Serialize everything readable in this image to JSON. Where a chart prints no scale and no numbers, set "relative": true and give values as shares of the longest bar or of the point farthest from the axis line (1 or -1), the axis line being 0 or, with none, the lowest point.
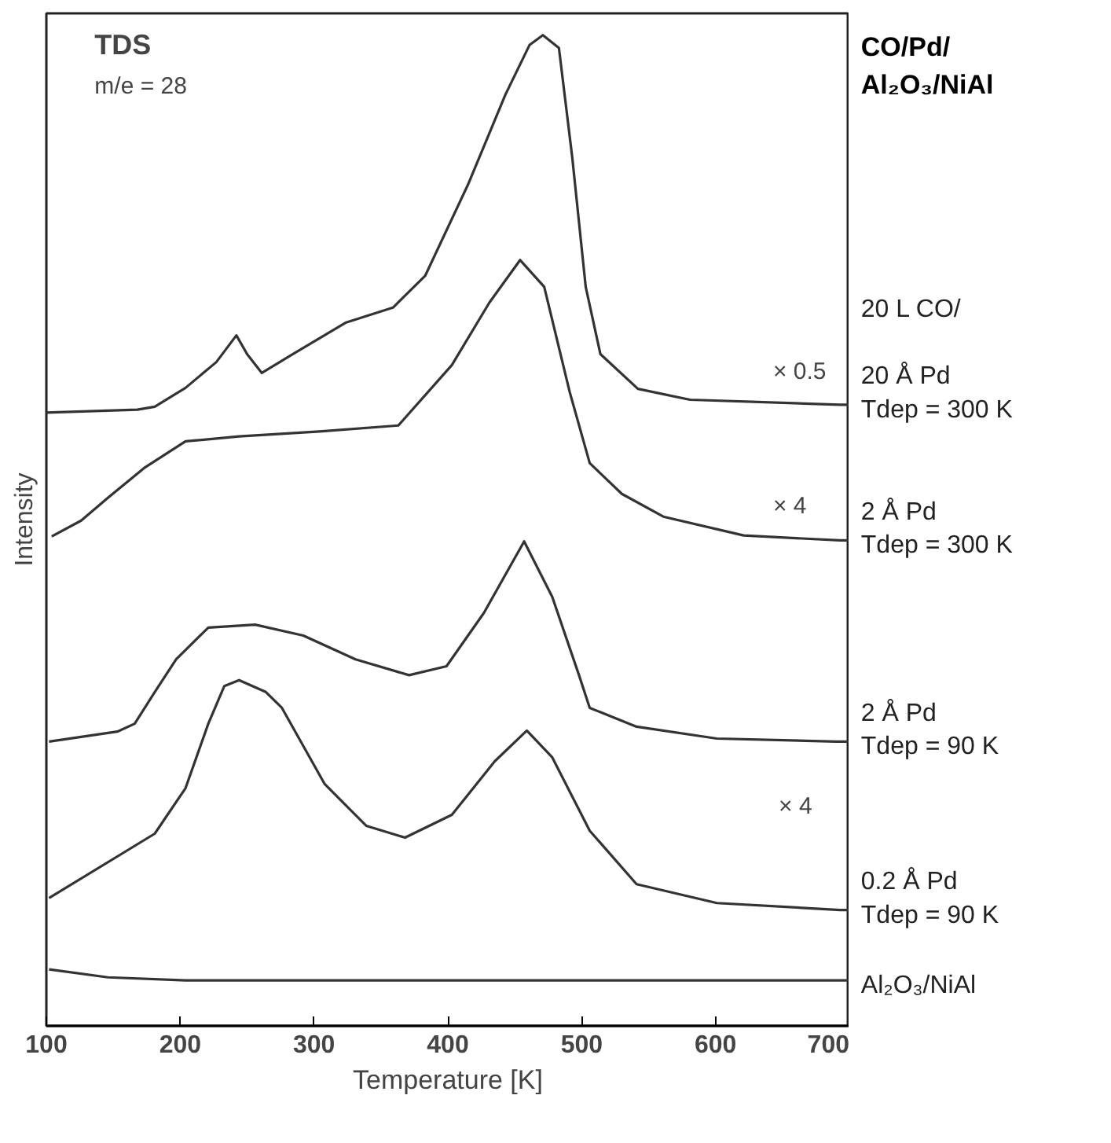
{
  "chart_data": {
    "type": "line",
    "title": "TDS",
    "subtitle": "m/e = 28",
    "xlabel": "Temperature [K]",
    "ylabel": "Intensity",
    "legend_title": "CO/Pd/\nAl₂O₃/NiAl",
    "relative": true,
    "xlim": [
      100,
      700
    ],
    "xticks": [
      100,
      200,
      300,
      400,
      500,
      600,
      700
    ],
    "grid": false,
    "marker": "none",
    "line_style": "solid",
    "series": [
      {
        "name": "20 L CO/\n\n20 Å Pd\nTdep = 300 K",
        "color": "#333333",
        "x": [
          100,
          168,
          181,
          204,
          227,
          242,
          250,
          261,
          284,
          324,
          359,
          383,
          415,
          443,
          461,
          471,
          483,
          493,
          503,
          514,
          542,
          581,
          693,
          700
        ],
        "values": [
          0.619,
          0.622,
          0.625,
          0.644,
          0.67,
          0.697,
          0.678,
          0.659,
          0.678,
          0.71,
          0.725,
          0.757,
          0.849,
          0.94,
          0.99,
          1.0,
          0.987,
          0.876,
          0.746,
          0.678,
          0.643,
          0.632,
          0.627,
          0.627
        ]
      },
      {
        "name": "2 Å Pd\nTdep = 300 K",
        "color": "#333333",
        "x": [
          104,
          126,
          146,
          173,
          204,
          244,
          304,
          363,
          403,
          431,
          454,
          472,
          491,
          506,
          530,
          561,
          621,
          693,
          700
        ],
        "values": [
          0.494,
          0.51,
          0.533,
          0.563,
          0.59,
          0.595,
          0.6,
          0.606,
          0.667,
          0.73,
          0.773,
          0.746,
          0.64,
          0.568,
          0.537,
          0.514,
          0.495,
          0.49,
          0.49
        ]
      },
      {
        "name": "2 Å Pd\nTdep = 90 K",
        "color": "#333333",
        "x": [
          102,
          153,
          166,
          181,
          197,
          221,
          256,
          292,
          331,
          371,
          399,
          427,
          457,
          478,
          498,
          506,
          541,
          601,
          690,
          700
        ],
        "values": [
          0.287,
          0.297,
          0.305,
          0.337,
          0.37,
          0.402,
          0.405,
          0.394,
          0.37,
          0.354,
          0.363,
          0.417,
          0.489,
          0.433,
          0.354,
          0.321,
          0.302,
          0.29,
          0.287,
          0.287
        ]
      },
      {
        "name": "0.2 Å Pd\nTdep = 90 K",
        "color": "#333333",
        "x": [
          102,
          181,
          204,
          221,
          233,
          244,
          264,
          276,
          308,
          339,
          368,
          403,
          435,
          459,
          478,
          506,
          541,
          601,
          693,
          700
        ],
        "values": [
          0.129,
          0.194,
          0.24,
          0.305,
          0.343,
          0.349,
          0.337,
          0.321,
          0.244,
          0.202,
          0.19,
          0.213,
          0.267,
          0.298,
          0.271,
          0.197,
          0.143,
          0.124,
          0.117,
          0.117
        ]
      },
      {
        "name": "Al₂O₃/NiAl",
        "color": "#333333",
        "x": [
          102,
          146,
          204,
          693,
          700
        ],
        "values": [
          0.057,
          0.049,
          0.046,
          0.046,
          0.046
        ]
      }
    ],
    "annotations": [
      "× 0.5",
      "× 4",
      "× 4"
    ]
  }
}
